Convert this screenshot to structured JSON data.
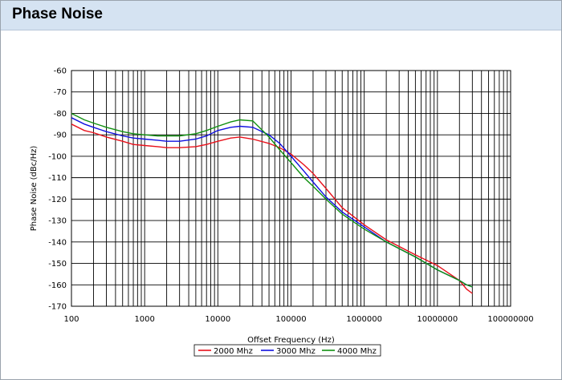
{
  "window": {
    "title": "Phase Noise"
  },
  "chart_data": {
    "type": "line",
    "title": "",
    "xlabel": "Offset Frequency (Hz)",
    "ylabel": "Phase Noise (dBc/Hz)",
    "xscale": "log",
    "xlim": [
      100,
      100000000
    ],
    "ylim": [
      -170,
      -60
    ],
    "x_ticks": [
      100,
      1000,
      10000,
      100000,
      1000000,
      10000000,
      100000000
    ],
    "x_tick_labels": [
      "100",
      "1000",
      "10000",
      "100000",
      "1000000",
      "10000000",
      "100000000"
    ],
    "y_ticks": [
      -60,
      -70,
      -80,
      -90,
      -100,
      -110,
      -120,
      -130,
      -140,
      -150,
      -160,
      -170
    ],
    "grid": true,
    "legend_position": "bottom-center",
    "series": [
      {
        "name": "2000 Mhz",
        "color": "#e8101a",
        "x": [
          100,
          150,
          200,
          300,
          500,
          700,
          1000,
          1500,
          2000,
          3000,
          5000,
          7000,
          10000,
          15000,
          20000,
          30000,
          50000,
          70000,
          100000,
          150000,
          200000,
          300000,
          500000,
          1000000,
          2000000,
          5000000,
          10000000,
          20000000,
          25000000,
          30000000
        ],
        "y": [
          -85,
          -88,
          -89,
          -91,
          -93,
          -94.5,
          -95,
          -95.5,
          -96,
          -96,
          -95.5,
          -94.5,
          -93,
          -91.5,
          -91,
          -92,
          -94,
          -96,
          -99,
          -104,
          -108,
          -115,
          -124,
          -132,
          -139,
          -146,
          -151,
          -158,
          -162,
          -164
        ]
      },
      {
        "name": "3000 Mhz",
        "color": "#1010e0",
        "x": [
          100,
          150,
          200,
          300,
          500,
          700,
          1000,
          1500,
          2000,
          3000,
          5000,
          7000,
          10000,
          15000,
          20000,
          30000,
          50000,
          70000,
          100000,
          150000,
          200000,
          300000,
          500000,
          1000000,
          2000000,
          5000000,
          10000000,
          20000000,
          25000000,
          30000000
        ],
        "y": [
          -82,
          -85,
          -86.5,
          -88.5,
          -90.5,
          -91.5,
          -92,
          -92.5,
          -93,
          -93,
          -92,
          -90.5,
          -88,
          -86.5,
          -86,
          -86.5,
          -90,
          -94,
          -100,
          -107,
          -112,
          -119,
          -126,
          -133,
          -140,
          -147,
          -153,
          -158,
          -160,
          -161
        ]
      },
      {
        "name": "4000 Mhz",
        "color": "#109010",
        "x": [
          100,
          150,
          200,
          300,
          500,
          700,
          1000,
          1500,
          2000,
          3000,
          5000,
          7000,
          10000,
          15000,
          20000,
          30000,
          50000,
          70000,
          100000,
          150000,
          200000,
          300000,
          500000,
          1000000,
          2000000,
          5000000,
          10000000,
          20000000,
          25000000,
          30000000
        ],
        "y": [
          -80,
          -83,
          -84.5,
          -86.5,
          -88.5,
          -89.5,
          -90,
          -90.5,
          -90.5,
          -90.5,
          -89.5,
          -88,
          -86,
          -84,
          -83,
          -83.5,
          -91,
          -97,
          -103,
          -110,
          -114,
          -120,
          -127,
          -134,
          -140,
          -147,
          -153,
          -158,
          -160,
          -161
        ]
      }
    ]
  }
}
